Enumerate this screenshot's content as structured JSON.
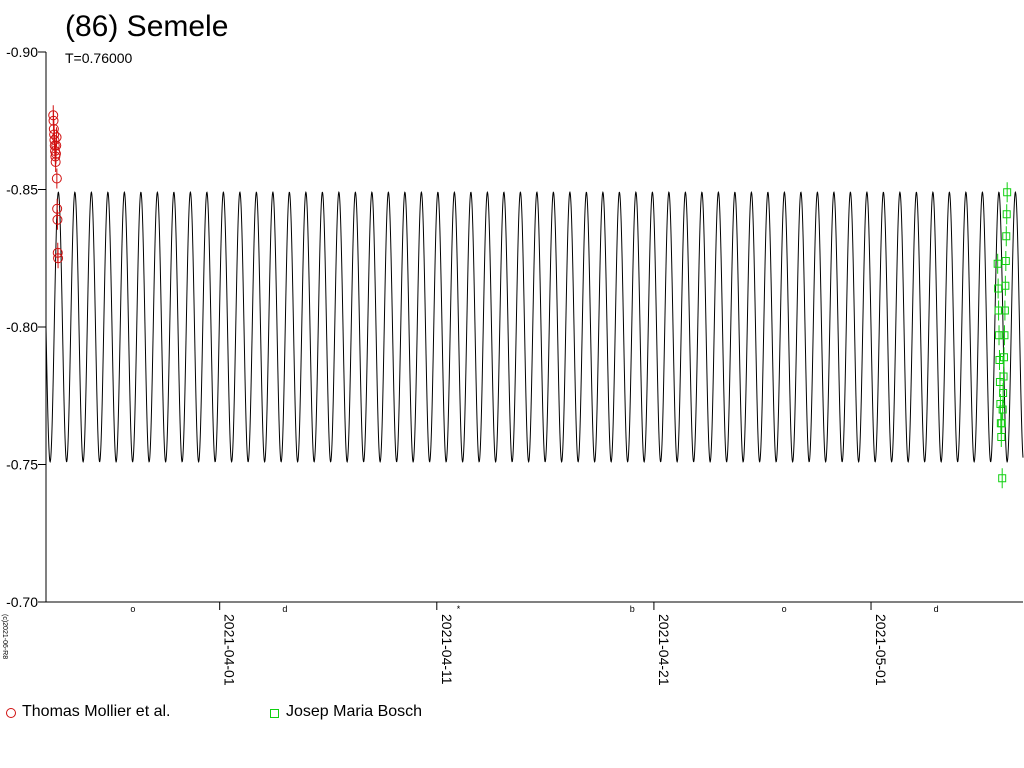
{
  "header": {
    "title": "(86) Semele",
    "period": "T=0.76000"
  },
  "credit": "(c)2021-06-R8",
  "colors": {
    "model": "#000000",
    "series_0": "#d01010",
    "series_1": "#10d010"
  },
  "legend": [
    {
      "label": "Thomas Mollier et al.",
      "marker": "circle",
      "color": "#d01010"
    },
    {
      "label": "Josep Maria Bosch",
      "marker": "square",
      "color": "#10d010"
    }
  ],
  "chart_data": {
    "type": "line",
    "title": "(86) Semele",
    "subtitle": "T=0.76000",
    "xlabel": "",
    "ylabel": "",
    "x_type": "date",
    "xlim": [
      "2021-03-24",
      "2021-05-08"
    ],
    "ylim": [
      -0.9,
      -0.7
    ],
    "y_inverted": true,
    "y_ticks": [
      -0.9,
      -0.85,
      -0.8,
      -0.75,
      -0.7
    ],
    "y_tick_labels": [
      "-0.90",
      "-0.85",
      "-0.80",
      "-0.75",
      "-0.70"
    ],
    "x_ticks": [
      "2021-04-01",
      "2021-04-11",
      "2021-04-21",
      "2021-05-01"
    ],
    "x_tick_labels": [
      "2021-04-01",
      "2021-04-11",
      "2021-04-21",
      "2021-05-01"
    ],
    "model_curve": {
      "period_hours": 18.24,
      "mean_mag": -0.8,
      "amplitude": 0.049
    },
    "moon_phases": [
      {
        "date": "2021-03-28",
        "symbol": "o"
      },
      {
        "date": "2021-04-04",
        "symbol": "d"
      },
      {
        "date": "2021-04-12",
        "symbol": "*"
      },
      {
        "date": "2021-04-20",
        "symbol": "b"
      },
      {
        "date": "2021-04-27",
        "symbol": "o"
      },
      {
        "date": "2021-05-04",
        "symbol": "d"
      }
    ],
    "grid": false,
    "legend_position": "bottom",
    "series": [
      {
        "name": "Thomas Mollier et al.",
        "marker": "circle",
        "color": "#d01010",
        "points": [
          {
            "x": "2021-03-24 08:00",
            "y": -0.877
          },
          {
            "x": "2021-03-24 08:20",
            "y": -0.875
          },
          {
            "x": "2021-03-24 08:40",
            "y": -0.872
          },
          {
            "x": "2021-03-24 09:00",
            "y": -0.87
          },
          {
            "x": "2021-03-24 09:20",
            "y": -0.868
          },
          {
            "x": "2021-03-24 09:40",
            "y": -0.866
          },
          {
            "x": "2021-03-24 10:00",
            "y": -0.864
          },
          {
            "x": "2021-03-24 10:20",
            "y": -0.862
          },
          {
            "x": "2021-03-24 10:40",
            "y": -0.86
          },
          {
            "x": "2021-03-24 11:00",
            "y": -0.863
          },
          {
            "x": "2021-03-24 11:20",
            "y": -0.866
          },
          {
            "x": "2021-03-24 11:40",
            "y": -0.869
          },
          {
            "x": "2021-03-24 12:00",
            "y": -0.854
          },
          {
            "x": "2021-03-24 12:20",
            "y": -0.843
          },
          {
            "x": "2021-03-24 12:40",
            "y": -0.839
          },
          {
            "x": "2021-03-24 13:00",
            "y": -0.827
          },
          {
            "x": "2021-03-24 13:20",
            "y": -0.825
          }
        ]
      },
      {
        "name": "Josep Maria Bosch",
        "marker": "square",
        "color": "#10d010",
        "points": [
          {
            "x": "2021-05-06 20:00",
            "y": -0.823
          },
          {
            "x": "2021-05-06 20:30",
            "y": -0.814
          },
          {
            "x": "2021-05-06 21:00",
            "y": -0.806
          },
          {
            "x": "2021-05-06 21:30",
            "y": -0.797
          },
          {
            "x": "2021-05-06 22:00",
            "y": -0.788
          },
          {
            "x": "2021-05-06 22:30",
            "y": -0.78
          },
          {
            "x": "2021-05-06 23:00",
            "y": -0.772
          },
          {
            "x": "2021-05-06 23:30",
            "y": -0.765
          },
          {
            "x": "2021-05-07 00:00",
            "y": -0.76
          },
          {
            "x": "2021-05-07 00:30",
            "y": -0.765
          },
          {
            "x": "2021-05-07 01:00",
            "y": -0.745
          },
          {
            "x": "2021-05-07 01:30",
            "y": -0.77
          },
          {
            "x": "2021-05-07 02:00",
            "y": -0.776
          },
          {
            "x": "2021-05-07 02:30",
            "y": -0.782
          },
          {
            "x": "2021-05-07 03:00",
            "y": -0.789
          },
          {
            "x": "2021-05-07 03:30",
            "y": -0.797
          },
          {
            "x": "2021-05-07 04:00",
            "y": -0.806
          },
          {
            "x": "2021-05-07 04:30",
            "y": -0.815
          },
          {
            "x": "2021-05-07 05:00",
            "y": -0.824
          },
          {
            "x": "2021-05-07 05:30",
            "y": -0.833
          },
          {
            "x": "2021-05-07 06:00",
            "y": -0.841
          },
          {
            "x": "2021-05-07 06:30",
            "y": -0.849
          }
        ]
      }
    ]
  }
}
